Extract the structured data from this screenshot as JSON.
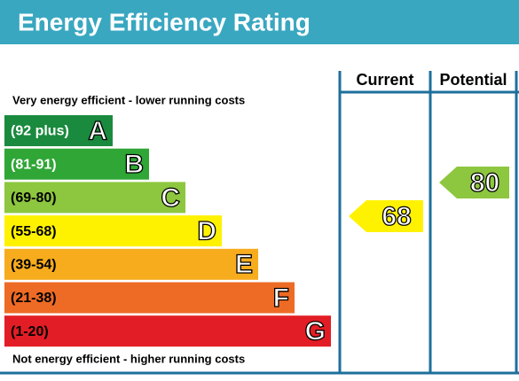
{
  "header": {
    "title": "Energy Efficiency Rating"
  },
  "scale": {
    "top_text": "Very energy efficient - lower running costs",
    "bottom_text": "Not energy efficient - higher running costs",
    "bands": [
      {
        "range": "(92 plus)",
        "letter": "A",
        "color": "#1a8a3e",
        "label_color": "#ffffff"
      },
      {
        "range": "(81-91)",
        "letter": "B",
        "color": "#2fa635",
        "label_color": "#ffffff"
      },
      {
        "range": "(69-80)",
        "letter": "C",
        "color": "#8dc63f",
        "label_color": "#000000"
      },
      {
        "range": "(55-68)",
        "letter": "D",
        "color": "#fff200",
        "label_color": "#000000"
      },
      {
        "range": "(39-54)",
        "letter": "E",
        "color": "#f7ac1e",
        "label_color": "#000000"
      },
      {
        "range": "(21-38)",
        "letter": "F",
        "color": "#ee6b25",
        "label_color": "#000000"
      },
      {
        "range": "(1-20)",
        "letter": "G",
        "color": "#e31d25",
        "label_color": "#000000"
      }
    ]
  },
  "columns": [
    {
      "header": "Current",
      "value": "68",
      "color": "#fff200"
    },
    {
      "header": "Potential",
      "value": "80",
      "color": "#8dc63f"
    }
  ]
}
